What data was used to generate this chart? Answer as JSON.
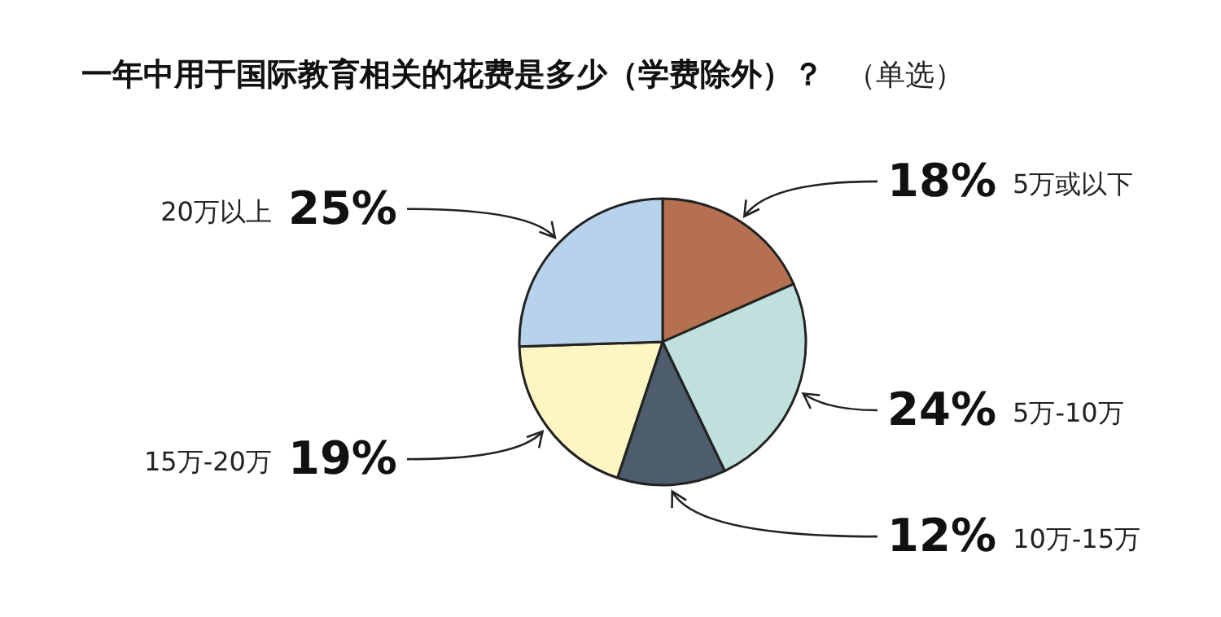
{
  "chart_data": {
    "type": "pie",
    "title": "一年中用于国际教育相关的花费是多少（学费除外）？",
    "subtitle": "（单选）",
    "categories": [
      "5万或以下",
      "5万-10万",
      "10万-15万",
      "15万-20万",
      "20万以上"
    ],
    "values": [
      18,
      24,
      12,
      19,
      25
    ],
    "value_labels": [
      "18%",
      "24%",
      "12%",
      "19%",
      "25%"
    ],
    "colors": [
      "#b5714f",
      "#bfe0dc",
      "#4d5d6e",
      "#fdf5c2",
      "#b7d3ec"
    ]
  }
}
